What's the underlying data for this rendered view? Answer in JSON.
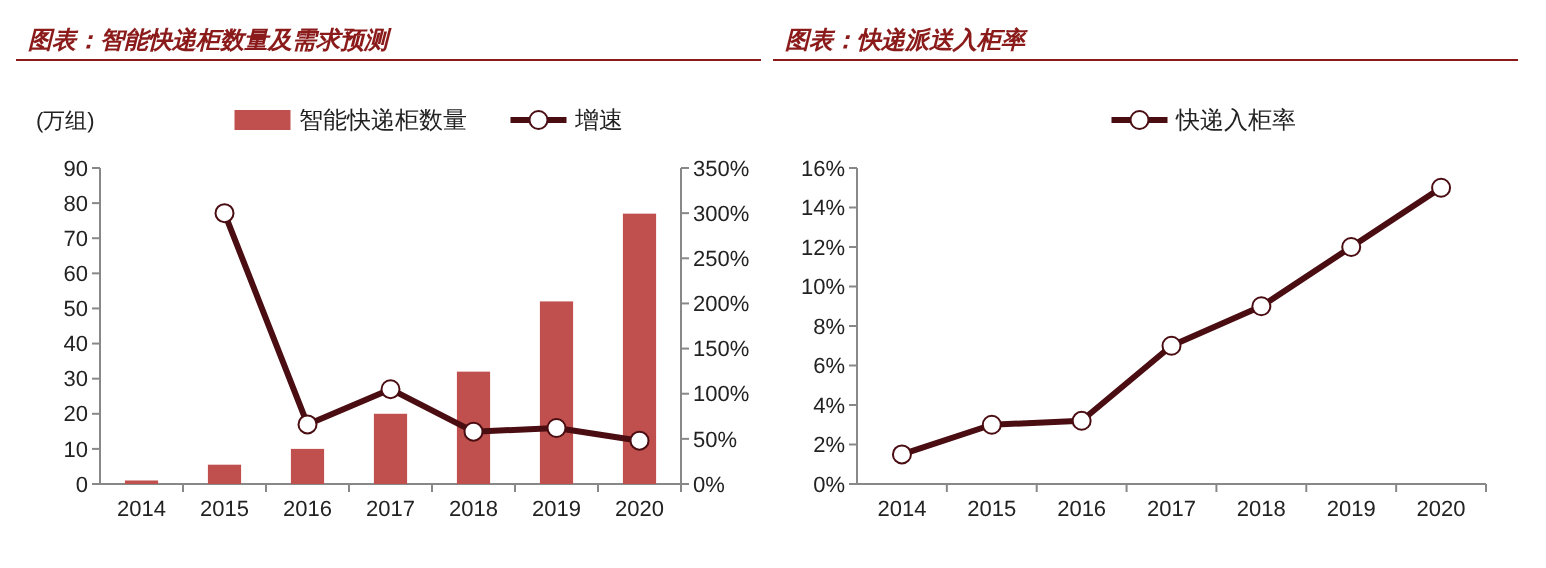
{
  "chart_data": [
    {
      "type": "bar",
      "title": "图表：智能快递柜数量及需求预测",
      "ylabel": "(万组)",
      "categories": [
        "2014",
        "2015",
        "2016",
        "2017",
        "2018",
        "2019",
        "2020"
      ],
      "series": [
        {
          "name": "智能快递柜数量",
          "color": "#c0504d",
          "values": [
            1,
            5.5,
            10,
            20,
            32,
            52,
            77
          ]
        },
        {
          "name": "增速",
          "type": "line",
          "axis": "y2",
          "color": "#4a0d12",
          "values": [
            null,
            300,
            66,
            105,
            58,
            62,
            48
          ]
        }
      ],
      "ylim": [
        0,
        90
      ],
      "yticks": [
        0,
        10,
        20,
        30,
        40,
        50,
        60,
        70,
        80,
        90
      ],
      "y2lim": [
        0,
        350
      ],
      "y2ticks": [
        {
          "value": 0,
          "label": "0%"
        },
        {
          "value": 50,
          "label": "50%"
        },
        {
          "value": 100,
          "label": "100%"
        },
        {
          "value": 150,
          "label": "150%"
        },
        {
          "value": 200,
          "label": "200%"
        },
        {
          "value": 250,
          "label": "250%"
        },
        {
          "value": 300,
          "label": "300%"
        },
        {
          "value": 350,
          "label": "350%"
        }
      ],
      "legend": "top",
      "grid": false,
      "marker": "circle"
    },
    {
      "type": "line",
      "title": "图表：快递派送入柜率",
      "categories": [
        "2014",
        "2015",
        "2016",
        "2017",
        "2018",
        "2019",
        "2020"
      ],
      "series": [
        {
          "name": "快递入柜率",
          "color": "#4a0d12",
          "values": [
            1.5,
            3,
            3.2,
            7,
            9,
            12,
            15
          ]
        }
      ],
      "ylim": [
        0,
        16
      ],
      "yticks": [
        {
          "value": 0,
          "label": "0%"
        },
        {
          "value": 2,
          "label": "2%"
        },
        {
          "value": 4,
          "label": "4%"
        },
        {
          "value": 6,
          "label": "6%"
        },
        {
          "value": 8,
          "label": "8%"
        },
        {
          "value": 10,
          "label": "10%"
        },
        {
          "value": 12,
          "label": "12%"
        },
        {
          "value": 14,
          "label": "14%"
        },
        {
          "value": 16,
          "label": "16%"
        }
      ],
      "legend": "top",
      "grid": false,
      "marker": "circle"
    }
  ]
}
